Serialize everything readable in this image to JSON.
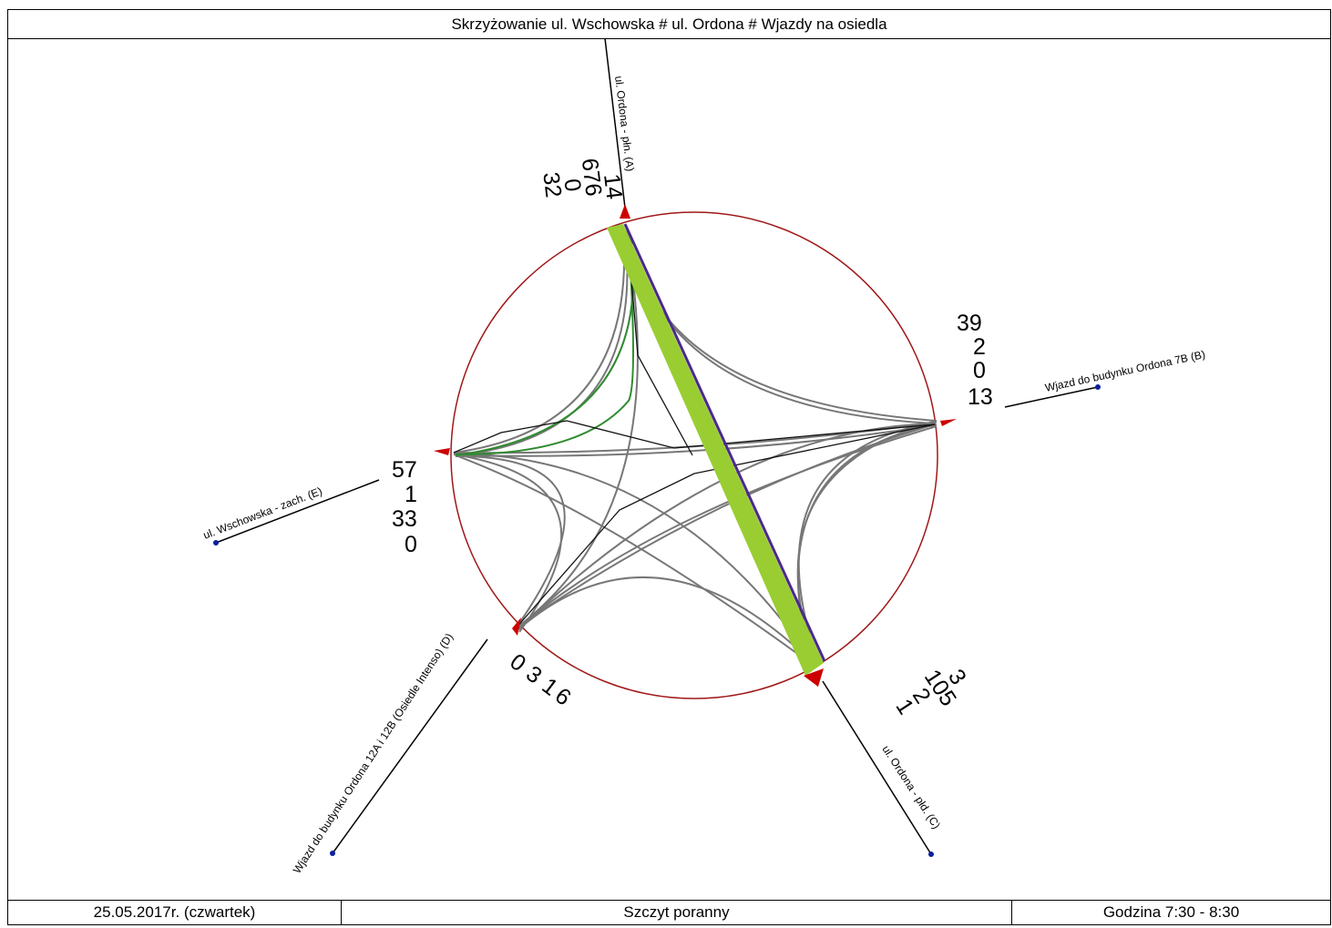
{
  "title": "Skrzyżowanie ul. Wschowska # ul. Ordona # Wjazdy na osiedla",
  "footer": {
    "date": "25.05.2017r. (czwartek)",
    "period": "Szczyt poranny",
    "hours": "Godzina 7:30 - 8:30"
  },
  "arms": {
    "A": {
      "name": "ul. Ordona - płn. (A)",
      "values": [
        "14",
        "676",
        "0",
        "32"
      ]
    },
    "B": {
      "name": "Wjazd do budynku Ordona 7B (B)",
      "values": [
        "39",
        "2",
        "0",
        "13"
      ]
    },
    "C": {
      "name": "ul. Ordona - płd. (C)",
      "values": [
        "3",
        "105",
        "2",
        "1"
      ]
    },
    "D": {
      "name": "Wjazd do budynku Ordona 12A i 12B (Osiedle Intenso) (D)",
      "values": [
        "0",
        "3",
        "1",
        "6"
      ]
    },
    "E": {
      "name": "ul. Wschowska - zach. (E)",
      "values": [
        "57",
        "1",
        "33",
        "0"
      ]
    }
  },
  "colors": {
    "circle": "#a01818",
    "main_flow": "#9acd32",
    "flow_grey": "#777777",
    "flow_green": "#2e8b2e",
    "flow_purple": "#4b2a8a",
    "marker": "#cc0000",
    "endpoint": "#0a1fa0"
  }
}
